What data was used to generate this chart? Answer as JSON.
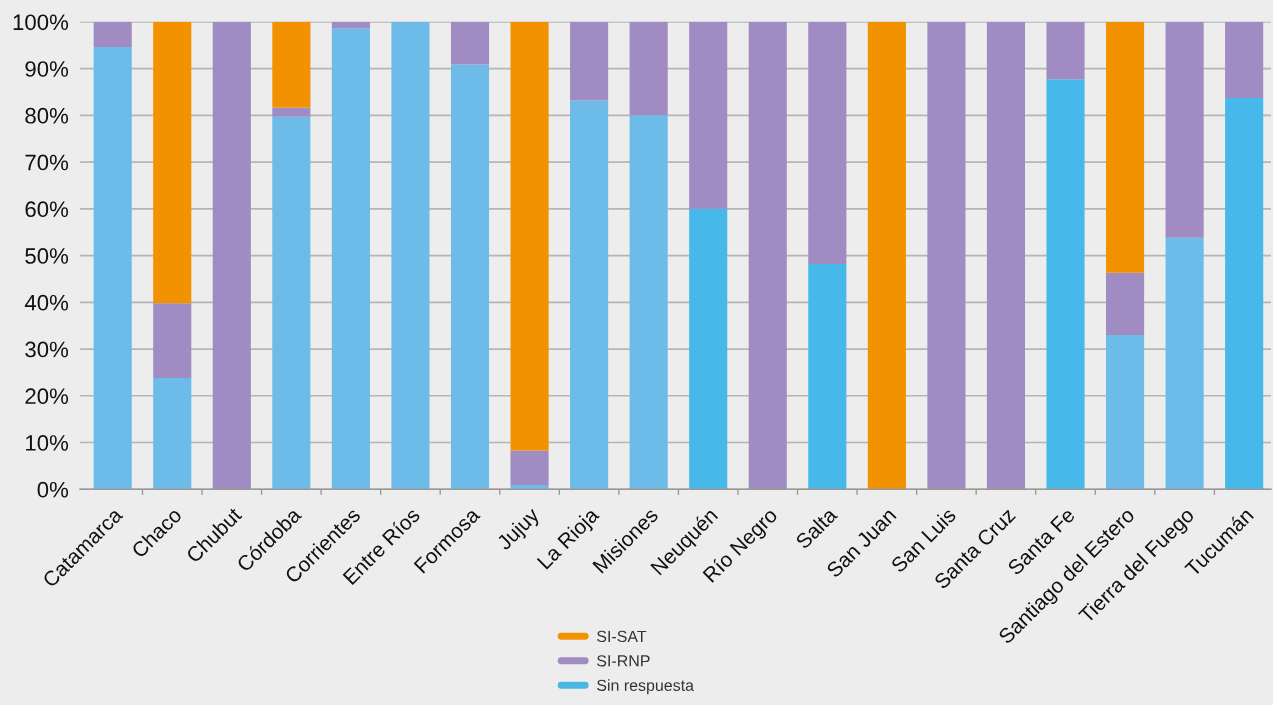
{
  "chart_data": {
    "type": "bar",
    "stacked": true,
    "categories": [
      "Catamarca",
      "Chaco",
      "Chubut",
      "Córdoba",
      "Corrientes",
      "Entre Ríos",
      "Formosa",
      "Jujuy",
      "La Rioja",
      "Misiones",
      "Neuquén",
      "Río Negro",
      "Salta",
      "San Juan",
      "San Luis",
      "Santa Cruz",
      "Santa Fe",
      "Santiago del Estero",
      "Tierra del Fuego",
      "Tucumán"
    ],
    "series": [
      {
        "name": "Sin respuesta",
        "color": "#4ab6e6",
        "colors": [
          "#6cbbe8",
          "#6cbbe8",
          "#6cbbe8",
          "#6cbbe8",
          "#6cbbe8",
          "#6cbbe8",
          "#6cbbe8",
          "#6cbbe8",
          "#6cbbe8",
          "#6cbbe8",
          "#46b8e9",
          "#6cbbe8",
          "#46b8e9",
          "#6cbbe8",
          "#6cbbe8",
          "#6cbbe8",
          "#46b8e9",
          "#6cbbe8",
          "#6cbbe8",
          "#46b8e9"
        ],
        "values": [
          94.6,
          23.8,
          null,
          79.7,
          98.6,
          100,
          90.9,
          0.9,
          83.2,
          80.0,
          60.0,
          null,
          48.2,
          null,
          null,
          null,
          87.7,
          33.0,
          53.8,
          83.7
        ]
      },
      {
        "name": "SI-RNP",
        "color": "#a08bc2",
        "values": [
          5.4,
          16.0,
          100,
          2.0,
          1.4,
          null,
          9.1,
          7.4,
          16.8,
          20.0,
          40.0,
          100,
          51.8,
          null,
          100,
          100,
          12.3,
          13.3,
          46.2,
          16.3
        ]
      },
      {
        "name": "SI-SAT",
        "color": "#f39200",
        "values": [
          null,
          60.2,
          null,
          18.3,
          null,
          null,
          null,
          91.7,
          null,
          null,
          null,
          null,
          null,
          100,
          null,
          null,
          null,
          53.7,
          null,
          null
        ]
      }
    ],
    "ylim": [
      0,
      100
    ],
    "yticks": [
      {
        "value": 0,
        "label": "0%"
      },
      {
        "value": 10,
        "label": "10%"
      },
      {
        "value": 20,
        "label": "20%"
      },
      {
        "value": 30,
        "label": "30%"
      },
      {
        "value": 40,
        "label": "40%"
      },
      {
        "value": 50,
        "label": "50%"
      },
      {
        "value": 60,
        "label": "60%"
      },
      {
        "value": 70,
        "label": "70%"
      },
      {
        "value": 80,
        "label": "80%"
      },
      {
        "value": 90,
        "label": "90%"
      },
      {
        "value": 100,
        "label": "100%"
      }
    ],
    "grid": "y",
    "legend": "bottom"
  }
}
